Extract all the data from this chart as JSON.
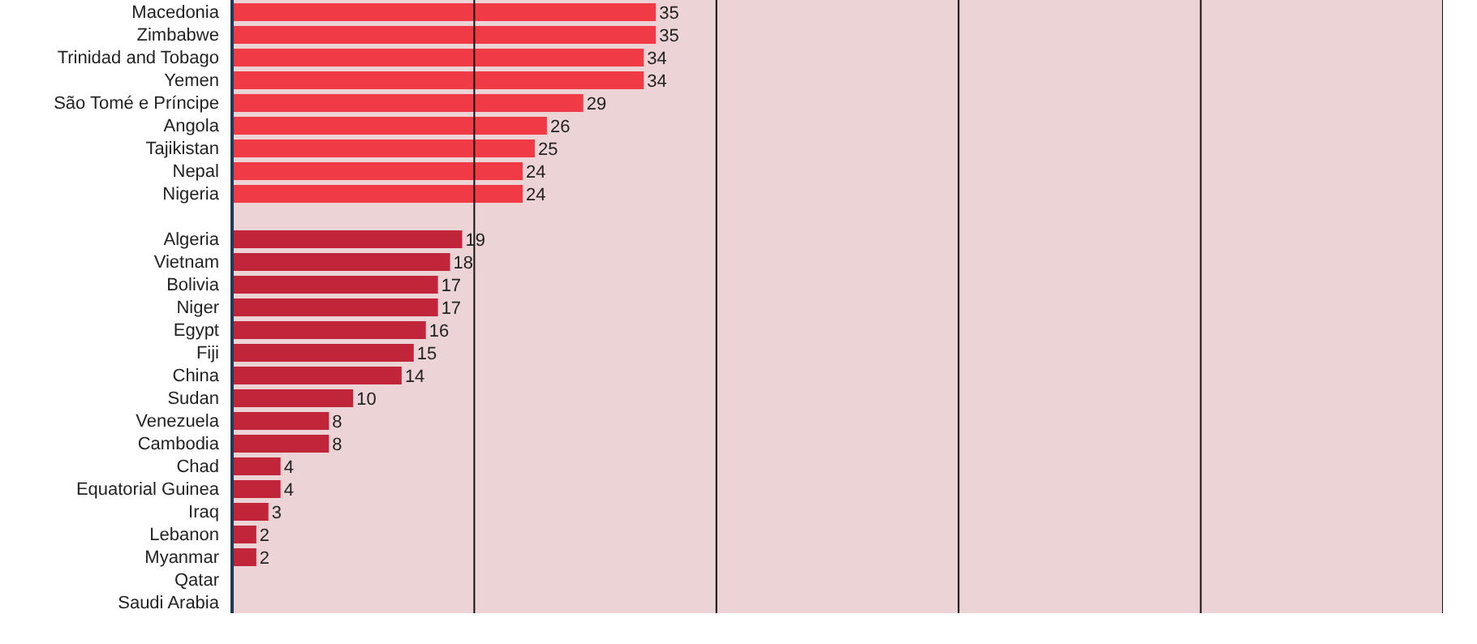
{
  "chart_data": {
    "type": "bar",
    "orientation": "horizontal",
    "categories": [
      "Macedonia",
      "Zimbabwe",
      "Trinidad and Tobago",
      "Yemen",
      "São Tomé e Príncipe",
      "Angola",
      "Tajikistan",
      "Nepal",
      "Nigeria",
      null,
      "Algeria",
      "Vietnam",
      "Bolivia",
      "Niger",
      "Egypt",
      "Fiji",
      "China",
      "Sudan",
      "Venezuela",
      "Cambodia",
      "Chad",
      "Equatorial Guinea",
      "Iraq",
      "Lebanon",
      "Myanmar",
      "Qatar",
      "Saudi Arabia"
    ],
    "values": [
      35,
      35,
      34,
      34,
      29,
      26,
      25,
      24,
      24,
      null,
      19,
      18,
      17,
      17,
      16,
      15,
      14,
      10,
      8,
      8,
      4,
      4,
      3,
      2,
      2,
      0,
      0
    ],
    "value_labels": [
      "35",
      "35",
      "34",
      "34",
      "29",
      "26",
      "25",
      "24",
      "24",
      null,
      "19",
      "18",
      "17",
      "17",
      "16",
      "15",
      "14",
      "10",
      "8",
      "8",
      "4",
      "4",
      "3",
      "2",
      "2",
      null,
      null
    ],
    "colors": [
      "#f03a46",
      "#f03a46",
      "#f03a46",
      "#f03a46",
      "#f03a46",
      "#f03a46",
      "#f03a46",
      "#f03a46",
      "#f03a46",
      "#f03a46",
      "#c0253a",
      "#c0253a",
      "#c0253a",
      "#c0253a",
      "#c0253a",
      "#c0253a",
      "#c0253a",
      "#c0253a",
      "#c0253a",
      "#c0253a",
      "#c0253a",
      "#c0253a",
      "#c0253a",
      "#c0253a",
      "#c0253a",
      "#1f3a5a",
      "#1f3a5a"
    ],
    "xlim": [
      0,
      100
    ],
    "xticks": [
      {
        "value": 20,
        "label": null
      },
      {
        "value": 40,
        "label": null
      },
      {
        "value": 60,
        "label": null
      },
      {
        "value": 80,
        "label": null
      },
      {
        "value": 100,
        "label": null
      }
    ],
    "grid": "x",
    "legend": false
  }
}
